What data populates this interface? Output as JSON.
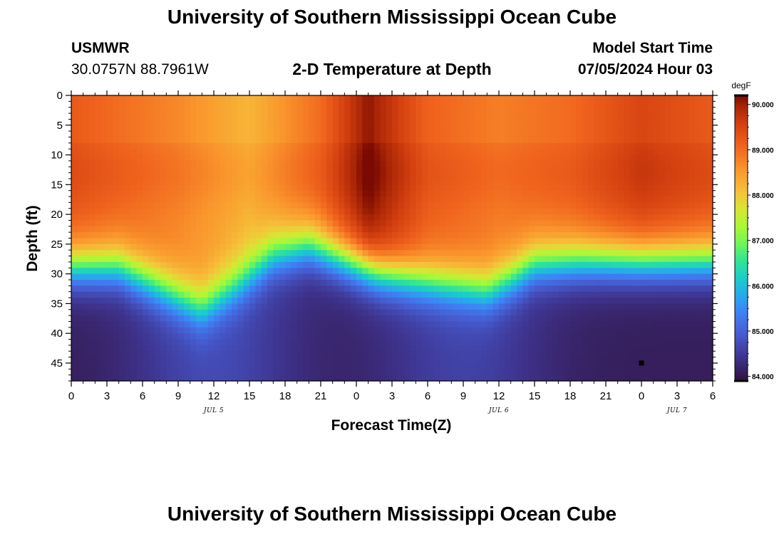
{
  "header": {
    "title": "University of Southern Mississippi Ocean Cube",
    "station": "USMWR",
    "coords": "30.0757N  88.7961W",
    "subtitle": "2-D Temperature at Depth",
    "start_label": "Model Start Time",
    "start_value": "07/05/2024 Hour 03"
  },
  "footer": {
    "title": "University of Southern Mississippi Ocean Cube"
  },
  "chart_data": {
    "type": "heatmap",
    "title": "2-D Temperature at Depth",
    "xlabel": "Forecast Time(Z)",
    "ylabel": "Depth (ft)",
    "x_hours_range": [
      0,
      54
    ],
    "x_tick_hours": [
      0,
      3,
      6,
      9,
      12,
      15,
      18,
      21,
      24,
      27,
      30,
      33,
      36,
      39,
      42,
      45,
      48,
      51,
      54
    ],
    "x_tick_labels": [
      "0",
      "3",
      "6",
      "9",
      "12",
      "15",
      "18",
      "21",
      "0",
      "3",
      "6",
      "9",
      "12",
      "15",
      "18",
      "21",
      "0",
      "3",
      "6"
    ],
    "day_labels": [
      {
        "label": "JUL 5",
        "hour": 12
      },
      {
        "label": "JUL 6",
        "hour": 36
      },
      {
        "label": "JUL 7",
        "hour": 51
      }
    ],
    "y_range": [
      0,
      48
    ],
    "y_ticks": [
      0,
      5,
      10,
      15,
      20,
      25,
      30,
      35,
      40,
      45
    ],
    "colorbar": {
      "unit": "degF",
      "range": [
        83.9,
        90.2
      ],
      "tick_values": [
        84,
        85,
        86,
        87,
        88,
        89,
        90
      ],
      "tick_labels": [
        "84.000",
        "85.000",
        "86.000",
        "87.000",
        "88.000",
        "89.000",
        "90.000"
      ]
    },
    "approx_thermocline_depth_ft": [
      {
        "hour": 0,
        "depth": 29
      },
      {
        "hour": 4,
        "depth": 29
      },
      {
        "hour": 8,
        "depth": 33
      },
      {
        "hour": 11,
        "depth": 36
      },
      {
        "hour": 14,
        "depth": 32
      },
      {
        "hour": 17,
        "depth": 27
      },
      {
        "hour": 20,
        "depth": 25.5
      },
      {
        "hour": 22,
        "depth": 27
      },
      {
        "hour": 26,
        "depth": 30
      },
      {
        "hour": 30,
        "depth": 31.5
      },
      {
        "hour": 35,
        "depth": 33
      },
      {
        "hour": 37,
        "depth": 31
      },
      {
        "hour": 39,
        "depth": 28.5
      },
      {
        "hour": 43,
        "depth": 28
      },
      {
        "hour": 48,
        "depth": 28
      },
      {
        "hour": 54,
        "depth": 28
      }
    ],
    "approx_surface_temp_degF": [
      {
        "hour": 0,
        "temp": 89.2
      },
      {
        "hour": 9,
        "temp": 88.7
      },
      {
        "hour": 15,
        "temp": 88.2
      },
      {
        "hour": 21,
        "temp": 89.0
      },
      {
        "hour": 25,
        "temp": 90.1
      },
      {
        "hour": 30,
        "temp": 89.1
      },
      {
        "hour": 36,
        "temp": 88.8
      },
      {
        "hour": 42,
        "temp": 89.0
      },
      {
        "hour": 48,
        "temp": 89.5
      },
      {
        "hour": 54,
        "temp": 89.2
      }
    ],
    "bottom_temp_degF": 84.1,
    "marker": {
      "hour": 48,
      "depth": 45
    }
  }
}
